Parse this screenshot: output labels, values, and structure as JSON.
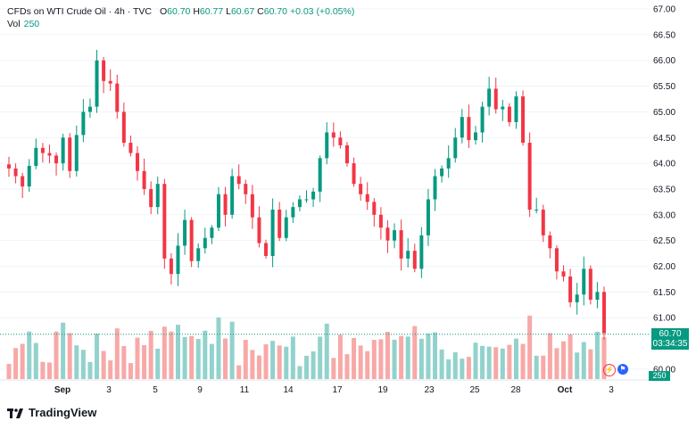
{
  "legend": {
    "title": "CFDs on WTI Crude Oil · 4h · TVC",
    "open_label": "O",
    "open": "60.70",
    "high_label": "H",
    "high": "60.77",
    "low_label": "L",
    "low": "60.67",
    "close_label": "C",
    "close": "60.70",
    "change": "+0.03 (+0.05%)",
    "vol_label": "Vol",
    "vol_value": "250"
  },
  "badges": {
    "price": "60.70",
    "countdown": "03:34:35",
    "volume": "250"
  },
  "footer": {
    "brand": "TradingView"
  },
  "colors": {
    "up": "#089981",
    "down": "#F23645",
    "vol_up": "#92D2CC",
    "vol_down": "#F7A9A7",
    "grid": "#F0F3FA"
  },
  "chart_data": {
    "type": "candlestick",
    "title": "CFDs on WTI Crude Oil · 4h · TVC",
    "y_ticks": [
      67.0,
      66.5,
      66.0,
      65.5,
      65.0,
      64.5,
      64.0,
      63.5,
      63.0,
      62.5,
      62.0,
      61.5,
      61.0,
      60.0
    ],
    "ylim": [
      60.0,
      67.0
    ],
    "x_ticks": [
      "Sep",
      "3",
      "5",
      "9",
      "11",
      "14",
      "17",
      "19",
      "23",
      "25",
      "28",
      "Oct",
      "3"
    ],
    "current_price": 60.7,
    "candles_close": [
      63.9,
      63.75,
      63.55,
      63.95,
      64.3,
      64.2,
      64.15,
      64.0,
      64.5,
      63.85,
      64.55,
      65.0,
      65.1,
      66.0,
      65.6,
      65.55,
      65.0,
      64.4,
      64.2,
      63.85,
      63.5,
      63.15,
      63.6,
      62.15,
      61.85,
      62.4,
      62.9,
      62.1,
      62.35,
      62.55,
      62.75,
      63.4,
      63.0,
      63.75,
      63.6,
      63.4,
      62.95,
      62.45,
      62.2,
      63.1,
      62.55,
      62.95,
      63.15,
      63.3,
      63.3,
      63.45,
      64.1,
      64.6,
      64.5,
      64.35,
      64.0,
      63.6,
      63.4,
      63.25,
      63.0,
      62.75,
      62.5,
      62.7,
      62.15,
      62.3,
      61.95,
      62.6,
      63.3,
      63.75,
      63.9,
      64.1,
      64.5,
      64.9,
      64.45,
      64.6,
      65.1,
      65.45,
      65.05,
      65.1,
      64.8,
      65.3,
      64.4,
      63.1,
      63.1,
      62.6,
      62.35,
      61.9,
      61.8,
      61.3,
      61.45,
      61.95,
      61.35,
      61.5,
      60.7
    ]
  }
}
